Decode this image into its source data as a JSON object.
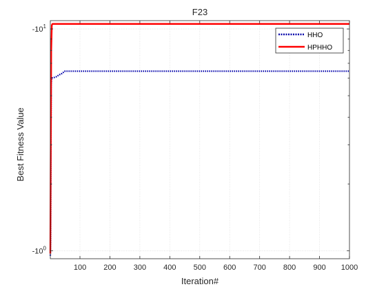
{
  "chart_data": {
    "type": "line",
    "title": "F23",
    "xlabel": "Iteration#",
    "ylabel": "Best Fitness Value",
    "x_scale": "linear",
    "y_scale": "log",
    "y_sign": "negative",
    "xlim": [
      1,
      1000
    ],
    "ylim": [
      -10.9,
      -0.92
    ],
    "xticks": [
      100,
      200,
      300,
      400,
      500,
      600,
      700,
      800,
      900,
      1000
    ],
    "ytick_labels": [
      {
        "base": "-10",
        "exp": "0"
      },
      {
        "base": "-10",
        "exp": "1"
      }
    ],
    "grid": true,
    "legend_placement": "top-right",
    "series": [
      {
        "name": "HHO",
        "color": "#0000aa",
        "style": "dotted",
        "x": [
          1,
          2,
          3,
          4,
          5,
          6,
          8,
          10,
          15,
          20,
          30,
          40,
          50,
          100,
          200,
          400,
          600,
          800,
          1000
        ],
        "y": [
          -0.95,
          -1.1,
          -3.0,
          -5.6,
          -5.9,
          -6.0,
          -6.02,
          -6.03,
          -6.05,
          -6.08,
          -6.2,
          -6.3,
          -6.45,
          -6.45,
          -6.45,
          -6.45,
          -6.45,
          -6.45,
          -6.45
        ]
      },
      {
        "name": "HPHHO",
        "color": "#ff0000",
        "style": "solid",
        "x": [
          1,
          2,
          3,
          4,
          6,
          8,
          10,
          20,
          100,
          500,
          1000
        ],
        "y": [
          -0.97,
          -2.0,
          -4.0,
          -8.0,
          -10.4,
          -10.53,
          -10.536,
          -10.536,
          -10.536,
          -10.536,
          -10.536
        ]
      }
    ]
  }
}
